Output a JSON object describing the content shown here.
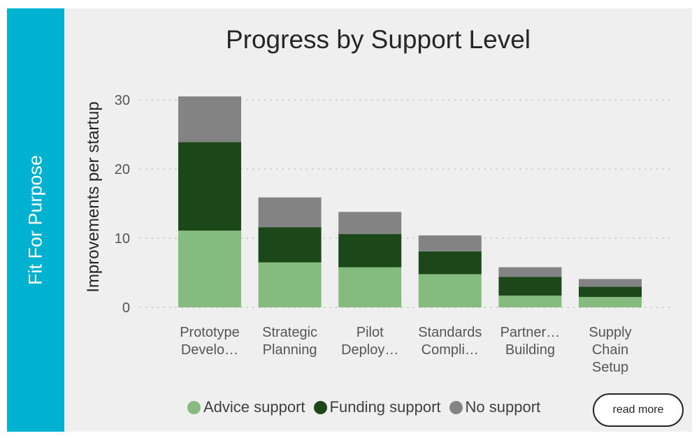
{
  "side_label": "Fit For Purpose",
  "read_more_label": "read more",
  "chart_data": {
    "type": "bar",
    "stacked": true,
    "title": "Progress by Support Level",
    "xlabel": "",
    "ylabel": "Improvements per startup",
    "ylim": [
      0,
      32
    ],
    "yticks": [
      0,
      10,
      20,
      30
    ],
    "grid": "horizontal-dotted",
    "legend_position": "bottom",
    "categories": [
      [
        "Prototype",
        "Develo…"
      ],
      [
        "Strategic",
        "Planning"
      ],
      [
        "Pilot",
        "Deploy…"
      ],
      [
        "Standards",
        "Compli…"
      ],
      [
        "Partner…",
        "Building"
      ],
      [
        "Supply",
        "Chain",
        "Setup"
      ]
    ],
    "series": [
      {
        "name": "Advice support",
        "color": "#85bb7e",
        "values": [
          11.1,
          6.5,
          5.8,
          4.8,
          1.7,
          1.5
        ]
      },
      {
        "name": "Funding support",
        "color": "#1b4719",
        "values": [
          12.8,
          5.1,
          4.8,
          3.3,
          2.7,
          1.5
        ]
      },
      {
        "name": "No support",
        "color": "#838383",
        "values": [
          6.6,
          4.3,
          3.2,
          2.3,
          1.4,
          1.1
        ]
      }
    ]
  }
}
